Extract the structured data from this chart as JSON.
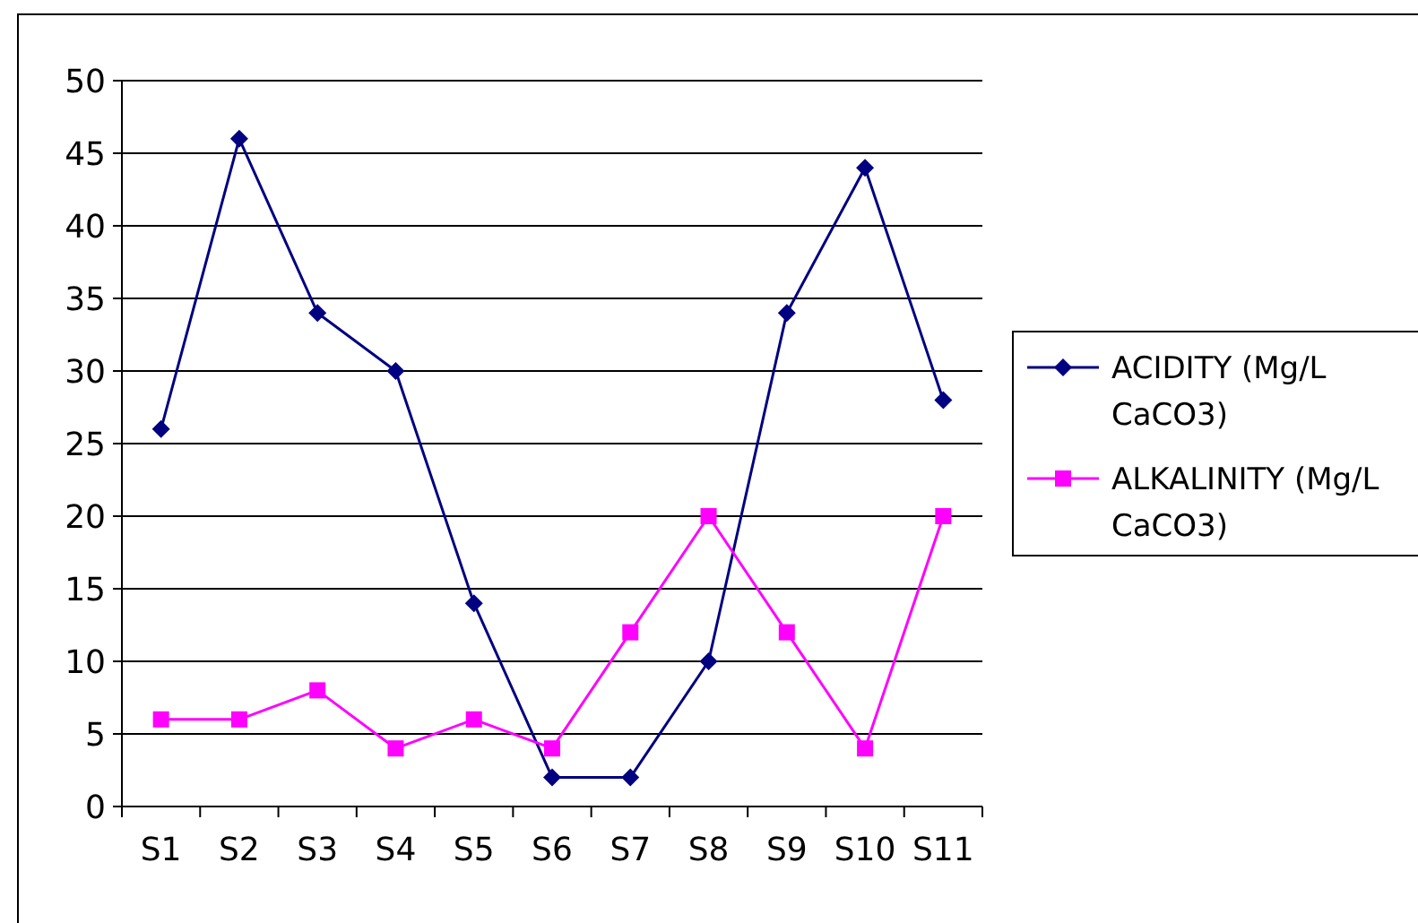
{
  "chart_data": {
    "type": "line",
    "categories": [
      "S1",
      "S2",
      "S3",
      "S4",
      "S5",
      "S6",
      "S7",
      "S8",
      "S9",
      "S10",
      "S11"
    ],
    "series": [
      {
        "name": "ACIDITY (Mg/L CaCO3)",
        "color": "#000080",
        "marker": "diamond",
        "values": [
          26,
          46,
          34,
          30,
          14,
          2,
          2,
          10,
          34,
          44,
          28
        ]
      },
      {
        "name": "ALKALINITY (Mg/L CaCO3)",
        "color": "#ff00ff",
        "marker": "square",
        "values": [
          6,
          6,
          8,
          4,
          6,
          4,
          12,
          20,
          12,
          4,
          20
        ]
      }
    ],
    "ylim": [
      0,
      50
    ],
    "yticks": [
      0,
      5,
      10,
      15,
      20,
      25,
      30,
      35,
      40,
      45,
      50
    ],
    "grid": "y",
    "legend": "right"
  }
}
